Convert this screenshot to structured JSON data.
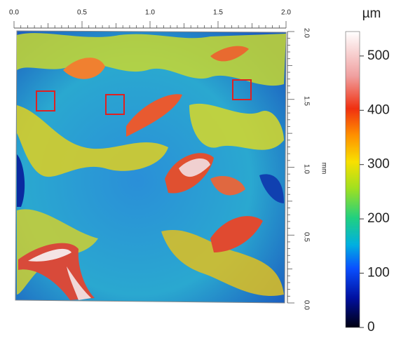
{
  "x_axis": {
    "ticks": [
      "0.0",
      "0.5",
      "1.0",
      "1.5",
      "2.0"
    ]
  },
  "y_axis": {
    "ticks": [
      "2.0",
      "1.5",
      "1.0",
      "0.5",
      "0.0"
    ],
    "label": "mm"
  },
  "colorbar": {
    "unit": "µm",
    "ticks": [
      0,
      100,
      200,
      300,
      400,
      500
    ],
    "lim": [
      0,
      545
    ]
  }
}
